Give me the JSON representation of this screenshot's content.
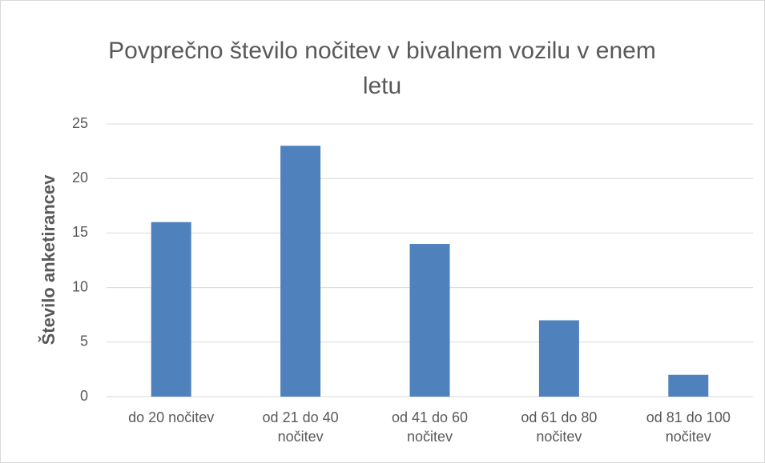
{
  "chart_data": {
    "type": "bar",
    "title": "Povprečno število nočitev v bivalnem vozilu v enem letu",
    "y_label": "Število anketirancev",
    "categories": [
      "do 20 nočitev",
      "od 21 do 40 nočitev",
      "od 41 do 60 nočitev",
      "od 61 do 80 nočitev",
      "od 81 do 100 nočitev"
    ],
    "values": [
      16,
      23,
      14,
      7,
      2
    ],
    "color": "#4f81bd",
    "ylim": [
      0,
      25
    ],
    "yticks": [
      0,
      5,
      10,
      15,
      20,
      25
    ],
    "grid": true
  }
}
